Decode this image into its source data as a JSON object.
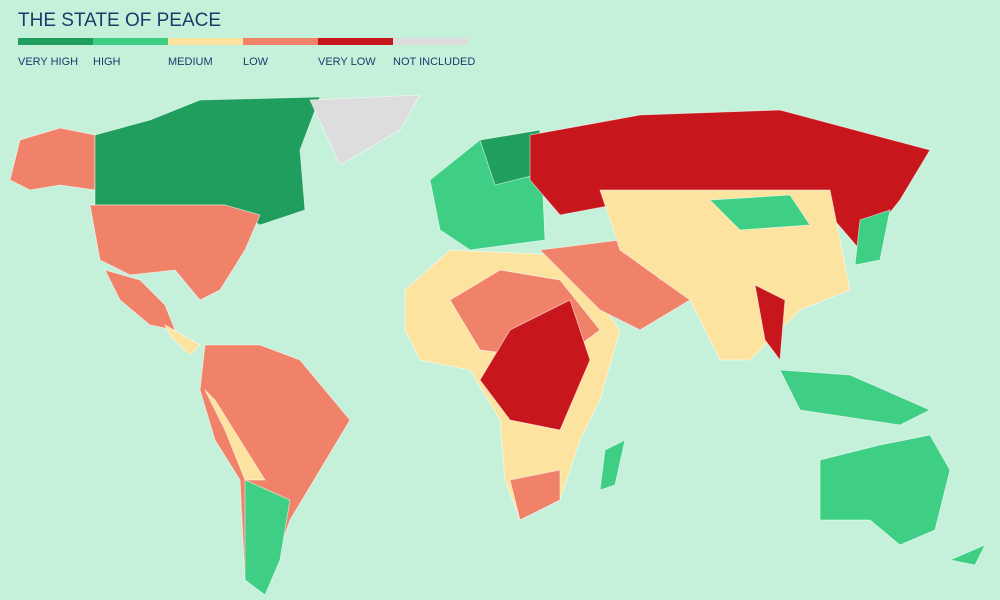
{
  "title": "THE STATE OF PEACE",
  "legend": [
    {
      "label": "VERY HIGH",
      "color": "#1f9e5e"
    },
    {
      "label": "HIGH",
      "color": "#3ecf84"
    },
    {
      "label": "MEDIUM",
      "color": "#fde3a0"
    },
    {
      "label": "LOW",
      "color": "#f0826a"
    },
    {
      "label": "VERY LOW",
      "color": "#c8161d"
    },
    {
      "label": "NOT INCLUDED",
      "color": "#dddddd"
    }
  ]
}
